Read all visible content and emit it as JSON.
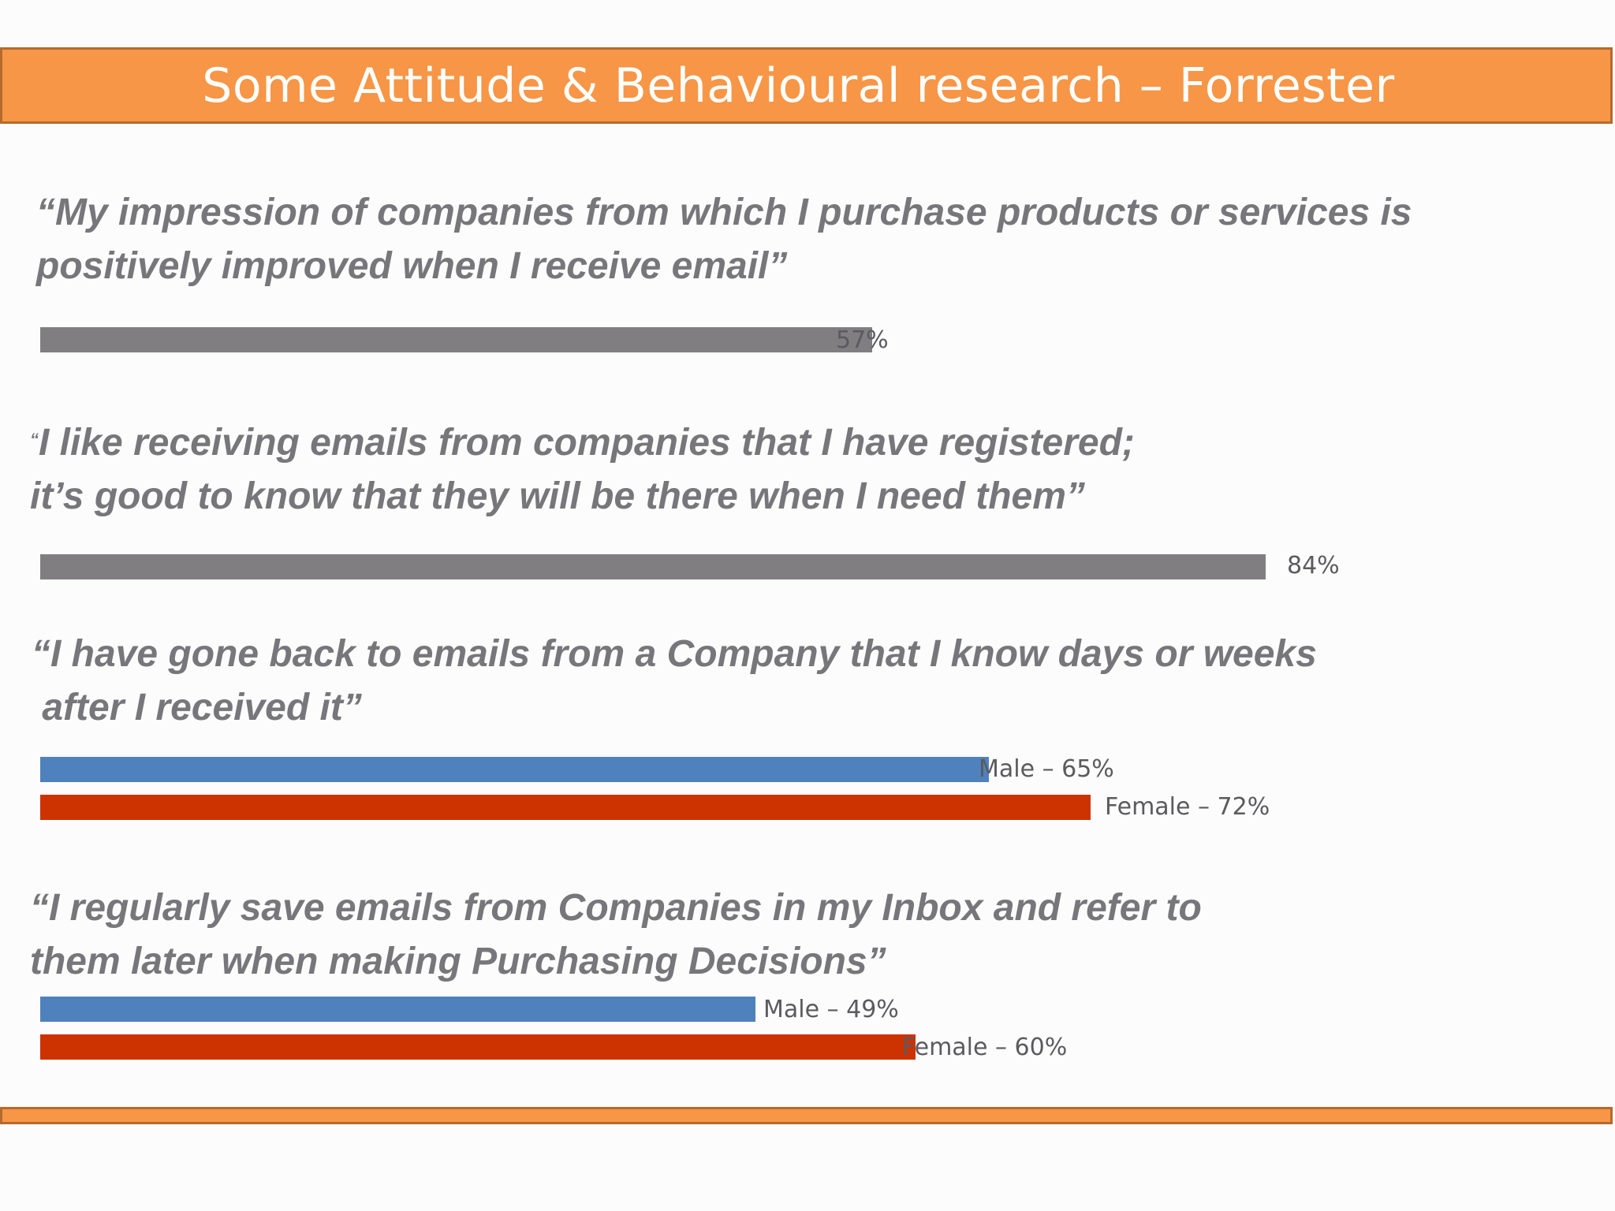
{
  "title": "Some Attitude & Behavioural research – Forrester",
  "colors": {
    "header": "#f79646",
    "overall": "#807e81",
    "male": "#4f81bd",
    "female": "#cc3300",
    "text": "#77767a"
  },
  "chart_data": [
    {
      "type": "bar",
      "quote_lines": [
        "“My impression of companies from which I purchase products or services is",
        "positively improved when I receive email”"
      ],
      "series": [
        {
          "value": 57,
          "label": "57%"
        }
      ]
    },
    {
      "type": "bar",
      "quote_mark": "“",
      "quote_lines": [
        "I like receiving emails from companies that I have registered;",
        "it’s good to know that they will be there when I need them”"
      ],
      "series": [
        {
          "value": 84,
          "label": "84%"
        }
      ]
    },
    {
      "type": "bar",
      "quote_lines": [
        "“I have gone back to emails from a Company that I know days or weeks",
        " after I received it”"
      ],
      "series": [
        {
          "name": "Male",
          "value": 65,
          "label": "Male – 65%"
        },
        {
          "name": "Female",
          "value": 72,
          "label": "Female – 72%"
        }
      ]
    },
    {
      "type": "bar",
      "quote_lines": [
        "“I regularly save emails from Companies in my Inbox and refer to",
        "them later when making Purchasing Decisions”"
      ],
      "series": [
        {
          "name": "Male",
          "value": 49,
          "label": "Male – 49%"
        },
        {
          "name": "Female",
          "value": 60,
          "label": "Female – 60%"
        }
      ]
    }
  ]
}
